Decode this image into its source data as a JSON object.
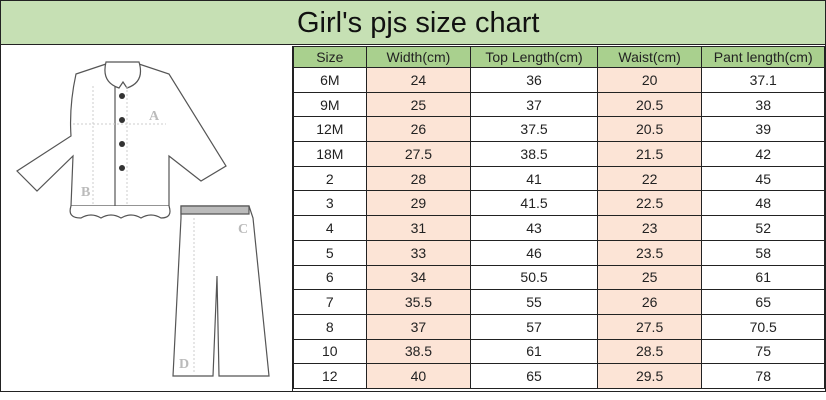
{
  "title": "Girl's pjs size chart",
  "colors": {
    "title_bg": "#c6e0b4",
    "header_bg": "#a9d08e",
    "highlight": "#fce4d6"
  },
  "illustration": {
    "labels": [
      "A",
      "B",
      "C",
      "D"
    ]
  },
  "table": {
    "headers": [
      "Size",
      "Width(cm)",
      "Top Length(cm)",
      "Waist(cm)",
      "Pant length(cm)"
    ],
    "rows": [
      [
        "6M",
        "24",
        "36",
        "20",
        "37.1"
      ],
      [
        "9M",
        "25",
        "37",
        "20.5",
        "38"
      ],
      [
        "12M",
        "26",
        "37.5",
        "20.5",
        "39"
      ],
      [
        "18M",
        "27.5",
        "38.5",
        "21.5",
        "42"
      ],
      [
        "2",
        "28",
        "41",
        "22",
        "45"
      ],
      [
        "3",
        "29",
        "41.5",
        "22.5",
        "48"
      ],
      [
        "4",
        "31",
        "43",
        "23",
        "52"
      ],
      [
        "5",
        "33",
        "46",
        "23.5",
        "58"
      ],
      [
        "6",
        "34",
        "50.5",
        "25",
        "61"
      ],
      [
        "7",
        "35.5",
        "55",
        "26",
        "65"
      ],
      [
        "8",
        "37",
        "57",
        "27.5",
        "70.5"
      ],
      [
        "10",
        "38.5",
        "61",
        "28.5",
        "75"
      ],
      [
        "12",
        "40",
        "65",
        "29.5",
        "78"
      ]
    ]
  }
}
